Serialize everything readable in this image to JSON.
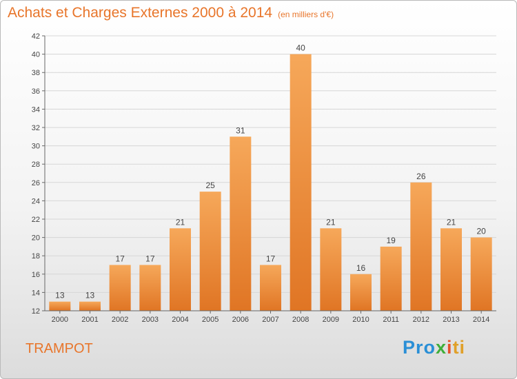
{
  "title": "Achats et Charges Externes 2000 à 2014",
  "unit": "(en milliers d'€)",
  "town": "TRAMPOT",
  "logo": {
    "p1": "Pro",
    "p2": "x",
    "p3": "i",
    "p4": "ti"
  },
  "colors": {
    "bar_top": "#f6a85a",
    "bar_bottom": "#e07524",
    "accent": "#e8752a",
    "grid": "#d6d6d6",
    "axis": "#666666"
  },
  "chart_data": {
    "type": "bar",
    "categories": [
      "2000",
      "2001",
      "2002",
      "2003",
      "2004",
      "2005",
      "2006",
      "2007",
      "2008",
      "2009",
      "2010",
      "2011",
      "2012",
      "2013",
      "2014"
    ],
    "values": [
      13,
      13,
      17,
      17,
      21,
      25,
      31,
      17,
      40,
      21,
      16,
      19,
      26,
      21,
      20
    ],
    "ylim": [
      12,
      42
    ],
    "yticks": [
      12,
      14,
      16,
      18,
      20,
      22,
      24,
      26,
      28,
      30,
      32,
      34,
      36,
      38,
      40,
      42
    ],
    "grid": true,
    "xlabel": "",
    "ylabel": ""
  }
}
